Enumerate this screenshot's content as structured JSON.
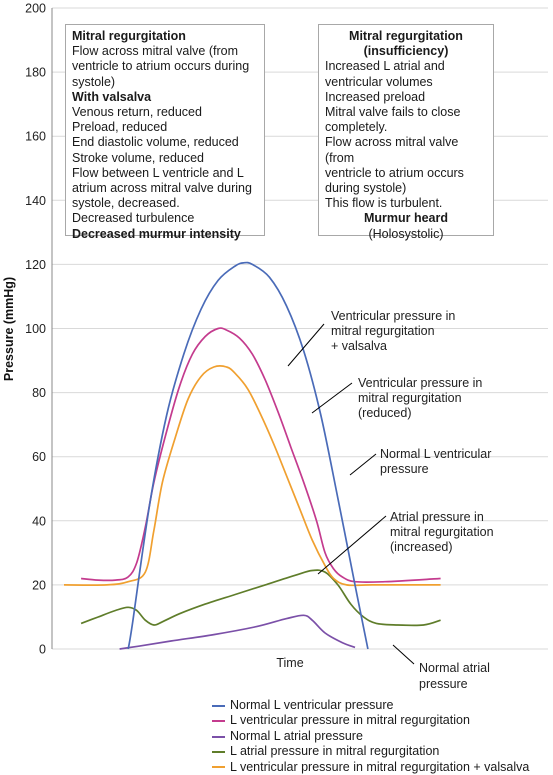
{
  "chart_data": {
    "type": "line",
    "xlabel": "Time",
    "ylabel": "Pressure (mmHg)",
    "ylim": [
      0,
      200
    ],
    "yticks": [
      0,
      20,
      40,
      60,
      80,
      100,
      120,
      140,
      160,
      180,
      200
    ],
    "grid": true,
    "legend_position": "bottom",
    "x_range": [
      0,
      100
    ],
    "series": [
      {
        "name": "Normal L ventricular pressure",
        "color": "#4a6bb8",
        "points": [
          [
            15,
            0
          ],
          [
            16,
            8
          ],
          [
            20,
            45
          ],
          [
            24,
            73
          ],
          [
            28,
            92
          ],
          [
            32,
            106
          ],
          [
            36,
            115
          ],
          [
            40,
            119.5
          ],
          [
            42,
            120.5
          ],
          [
            44,
            120
          ],
          [
            48,
            116
          ],
          [
            52,
            107
          ],
          [
            56,
            93
          ],
          [
            60,
            73
          ],
          [
            64,
            47
          ],
          [
            68,
            20
          ],
          [
            71,
            0
          ]
        ]
      },
      {
        "name": "L ventricular pressure in mitral regurgitation",
        "color": "#c43b8e",
        "points": [
          [
            4,
            22
          ],
          [
            8,
            21.5
          ],
          [
            12,
            21.5
          ],
          [
            15,
            22.5
          ],
          [
            17,
            27
          ],
          [
            19,
            38
          ],
          [
            21,
            52
          ],
          [
            24,
            68
          ],
          [
            27,
            82
          ],
          [
            30,
            92
          ],
          [
            33,
            97.5
          ],
          [
            36,
            100
          ],
          [
            38,
            99.5
          ],
          [
            41,
            97
          ],
          [
            44,
            92
          ],
          [
            47,
            84
          ],
          [
            50,
            74
          ],
          [
            53,
            63
          ],
          [
            56,
            52
          ],
          [
            59,
            40
          ],
          [
            61,
            30
          ],
          [
            63,
            25
          ],
          [
            65,
            22.5
          ],
          [
            68,
            21
          ],
          [
            75,
            21
          ],
          [
            88,
            22
          ]
        ]
      },
      {
        "name": "Normal L atrial pressure",
        "color": "#7b50a8",
        "points": [
          [
            13,
            0
          ],
          [
            18,
            1
          ],
          [
            25,
            2.5
          ],
          [
            35,
            4.5
          ],
          [
            45,
            7
          ],
          [
            52,
            9.5
          ],
          [
            56,
            10.5
          ],
          [
            58,
            9
          ],
          [
            61,
            5
          ],
          [
            65,
            2
          ],
          [
            68,
            0.5
          ]
        ]
      },
      {
        "name": "L atrial pressure in mitral regurgitation",
        "color": "#5f7d2a",
        "points": [
          [
            4,
            8
          ],
          [
            8,
            10
          ],
          [
            12,
            12
          ],
          [
            15,
            13
          ],
          [
            17,
            12
          ],
          [
            19,
            9
          ],
          [
            21,
            7.5
          ],
          [
            23,
            8.5
          ],
          [
            27,
            11
          ],
          [
            33,
            14
          ],
          [
            40,
            17
          ],
          [
            47,
            20
          ],
          [
            54,
            23
          ],
          [
            58,
            24.5
          ],
          [
            61,
            24
          ],
          [
            64,
            20
          ],
          [
            67,
            14
          ],
          [
            70,
            10
          ],
          [
            73,
            8
          ],
          [
            78,
            7.5
          ],
          [
            84,
            7.5
          ],
          [
            88,
            9
          ]
        ]
      },
      {
        "name": "L ventricular pressure in mitral regurgitation + valsalva",
        "color": "#f0a030",
        "points": [
          [
            0,
            20
          ],
          [
            10,
            20
          ],
          [
            15,
            21
          ],
          [
            19,
            24
          ],
          [
            21,
            37
          ],
          [
            23,
            52
          ],
          [
            26,
            66
          ],
          [
            29,
            78
          ],
          [
            32,
            85
          ],
          [
            35,
            88
          ],
          [
            38,
            88
          ],
          [
            40,
            86
          ],
          [
            43,
            81
          ],
          [
            46,
            73
          ],
          [
            49,
            64
          ],
          [
            52,
            54
          ],
          [
            55,
            44
          ],
          [
            58,
            34
          ],
          [
            61,
            26
          ],
          [
            63,
            22
          ],
          [
            66,
            20
          ],
          [
            72,
            20
          ],
          [
            88,
            20
          ]
        ]
      }
    ]
  },
  "annotations": {
    "mr_valsalva": [
      "Ventricular pressure in",
      "mitral regurgitation",
      "+ valsalva"
    ],
    "mr_reduced": [
      "Ventricular pressure in",
      "mitral regurgitation",
      "(reduced)"
    ],
    "normal_lv": [
      "Normal L ventricular",
      "pressure"
    ],
    "atrial_increased": [
      "Atrial pressure in",
      "mitral regurgitation",
      "(increased)"
    ],
    "normal_atrial": [
      "Normal atrial",
      "pressure"
    ]
  },
  "box_left": {
    "title": "Mitral regurgitation",
    "lines1": [
      "Flow across mitral valve (from",
      "ventricle to atrium occurs during",
      "systole)"
    ],
    "subtitle": "With valsalva",
    "lines2": [
      "Venous return, reduced",
      "Preload, reduced",
      "End diastolic volume, reduced",
      "Stroke volume, reduced",
      "Flow between L ventricle and L",
      "atrium across mitral valve during",
      "systole, decreased.",
      "Decreased turbulence"
    ],
    "footer": "Decreased murmur intensity"
  },
  "box_right": {
    "title": [
      "Mitral regurgitation",
      "(insufficiency)"
    ],
    "lines": [
      "Increased L atrial and",
      "ventricular volumes",
      "Increased preload",
      "Mitral valve fails to close",
      "completely.",
      "Flow across mitral valve (from",
      "ventricle to atrium occurs",
      "during systole)",
      "This flow is turbulent."
    ],
    "murmur": "Murmur heard",
    "murmur_sub": "(Holosystolic)"
  }
}
